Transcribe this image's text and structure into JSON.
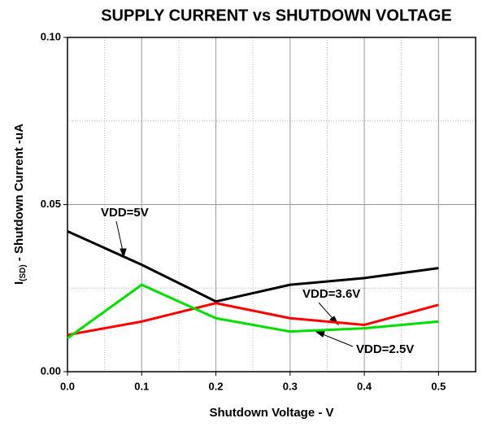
{
  "chart_data": {
    "type": "line",
    "title": "SUPPLY CURRENT vs SHUTDOWN VOLTAGE",
    "x_label": "Shutdown Voltage - V",
    "y_label": {
      "main": "I",
      "sub": "(SD)",
      "rest": " - Shutdown Current -uA"
    },
    "x": [
      0,
      0.1,
      0.2,
      0.3,
      0.4,
      0.5
    ],
    "series": [
      {
        "name": "VDD=5V",
        "color": "#000000",
        "values": [
          0.042,
          0.032,
          0.021,
          0.026,
          0.028,
          0.031
        ]
      },
      {
        "name": "VDD=3.6V",
        "color": "#ff0000",
        "values": [
          0.011,
          0.015,
          0.0205,
          0.016,
          0.014,
          0.02
        ]
      },
      {
        "name": "VDD=2.5V",
        "color": "#00e000",
        "values": [
          0.01,
          0.026,
          0.016,
          0.012,
          0.013,
          0.015
        ]
      }
    ],
    "xlim": [
      0,
      0.55
    ],
    "ylim": [
      0,
      0.1
    ],
    "xticks": [
      {
        "value": 0,
        "label": "0.0"
      },
      0.1,
      0.2,
      0.3,
      0.4,
      0.5
    ],
    "yticks": [
      {
        "value": 0,
        "label": "0.00"
      },
      {
        "value": 0.05,
        "label": "0.05"
      },
      {
        "value": 0.1,
        "label": "0.10"
      }
    ],
    "x_minor_ticks": [
      0.05,
      0.15,
      0.25,
      0.35,
      0.45
    ],
    "y_minor_ticks": [
      0.025,
      0.075
    ],
    "grid": true
  }
}
